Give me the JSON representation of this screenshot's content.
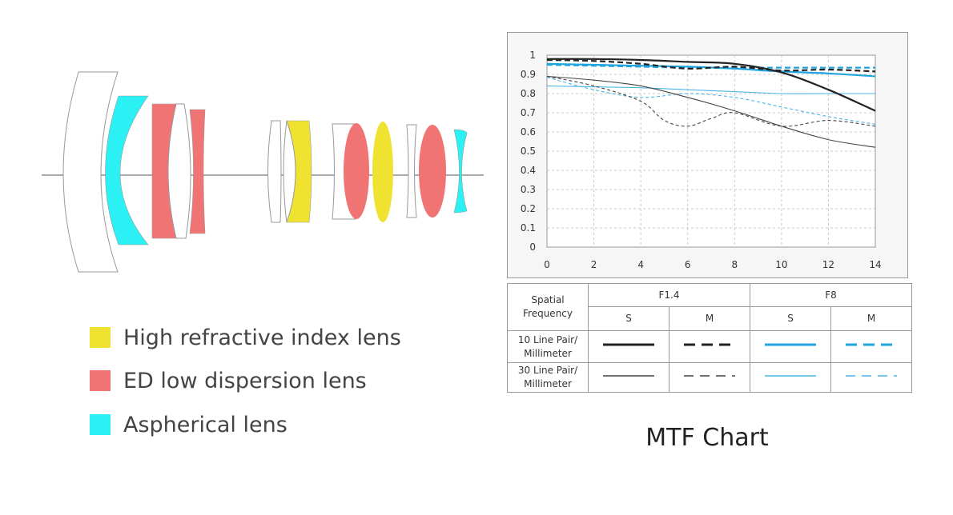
{
  "legend": {
    "items": [
      {
        "label": "High refractive index lens",
        "color": "#f0e231"
      },
      {
        "label": "ED low dispersion lens",
        "color": "#f07474"
      },
      {
        "label": "Aspherical lens",
        "color": "#2cf1f4"
      }
    ]
  },
  "lens_colors": {
    "high_refractive": "#f0e231",
    "ed": "#f07474",
    "aspherical": "#2cf1f4",
    "outline": "#999999"
  },
  "caption": "MTF Chart",
  "table": {
    "header_spatial": "Spatial\nFrequency",
    "aperture1": "F1.4",
    "aperture2": "F8",
    "s": "S",
    "m": "M",
    "row1": "10 Line Pair/\nMillimeter",
    "row2": "30 Line Pair/\nMillimeter"
  },
  "chart_data": {
    "type": "line",
    "title": "MTF Chart",
    "xlabel": "",
    "ylabel": "",
    "xlim": [
      0,
      14
    ],
    "ylim": [
      0,
      1
    ],
    "xticks": [
      "0",
      "2",
      "4",
      "6",
      "8",
      "10",
      "12",
      "14"
    ],
    "yticks": [
      "0",
      "0.1",
      "0.2",
      "0.3",
      "0.4",
      "0.5",
      "0.6",
      "0.7",
      "0.8",
      "0.9",
      "1"
    ],
    "grid": true,
    "series": [
      {
        "name": "F1.4 10 Line Pair/Millimeter S",
        "color": "#222222",
        "weight": "thick",
        "dash": "solid",
        "x": [
          0,
          2,
          4,
          6,
          8,
          10,
          12,
          14
        ],
        "y": [
          0.98,
          0.98,
          0.975,
          0.965,
          0.955,
          0.91,
          0.82,
          0.71
        ]
      },
      {
        "name": "F1.4 10 Line Pair/Millimeter M",
        "color": "#222222",
        "weight": "thick",
        "dash": "dashed",
        "x": [
          0,
          2,
          4,
          6,
          8,
          10,
          12,
          14
        ],
        "y": [
          0.975,
          0.97,
          0.955,
          0.93,
          0.94,
          0.92,
          0.925,
          0.915
        ]
      },
      {
        "name": "F8 10 Line Pair/Millimeter S",
        "color": "#1ea4df",
        "weight": "thick",
        "dash": "solid",
        "x": [
          0,
          2,
          4,
          6,
          8,
          10,
          12,
          14
        ],
        "y": [
          0.955,
          0.95,
          0.945,
          0.94,
          0.93,
          0.915,
          0.905,
          0.89
        ]
      },
      {
        "name": "F8 10 Line Pair/Millimeter M",
        "color": "#1ea4df",
        "weight": "thick",
        "dash": "dashed",
        "x": [
          0,
          2,
          4,
          6,
          8,
          10,
          12,
          14
        ],
        "y": [
          0.95,
          0.945,
          0.94,
          0.935,
          0.935,
          0.935,
          0.935,
          0.935
        ]
      },
      {
        "name": "F1.4 30 Line Pair/Millimeter S",
        "color": "#444444",
        "weight": "thin",
        "dash": "solid",
        "x": [
          0,
          2,
          4,
          6,
          8,
          10,
          12,
          14
        ],
        "y": [
          0.89,
          0.87,
          0.84,
          0.78,
          0.71,
          0.63,
          0.56,
          0.52
        ]
      },
      {
        "name": "F1.4 30 Line Pair/Millimeter M",
        "color": "#444444",
        "weight": "thin",
        "dash": "dashed",
        "x": [
          0,
          2,
          4,
          5,
          6,
          7,
          8,
          10,
          12,
          14
        ],
        "y": [
          0.89,
          0.84,
          0.76,
          0.66,
          0.63,
          0.67,
          0.7,
          0.63,
          0.66,
          0.63
        ]
      },
      {
        "name": "F8 30 Line Pair/Millimeter S",
        "color": "#4cb4e6",
        "weight": "thin",
        "dash": "solid",
        "x": [
          0,
          2,
          4,
          6,
          8,
          10,
          12,
          14
        ],
        "y": [
          0.84,
          0.835,
          0.83,
          0.82,
          0.81,
          0.8,
          0.8,
          0.8
        ]
      },
      {
        "name": "F8 30 Line Pair/Millimeter M",
        "color": "#4cb4e6",
        "weight": "thin",
        "dash": "dashed",
        "x": [
          0,
          2,
          4,
          6,
          8,
          10,
          12,
          14
        ],
        "y": [
          0.885,
          0.82,
          0.78,
          0.8,
          0.78,
          0.73,
          0.68,
          0.64
        ]
      }
    ]
  }
}
